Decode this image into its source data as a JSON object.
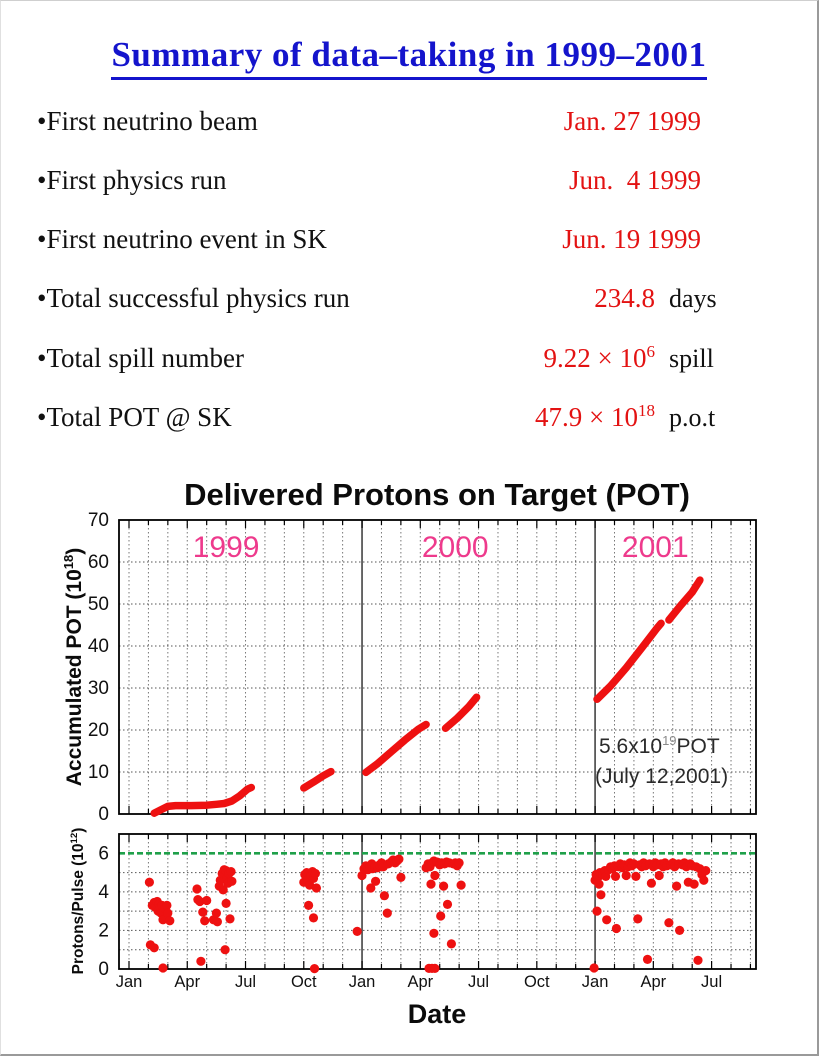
{
  "title": "Summary of data–taking in 1999–2001",
  "summary": {
    "items": [
      {
        "label": "•First neutrino beam",
        "value": "Jan. 27 1999",
        "value_sup": "",
        "unit": ""
      },
      {
        "label": "•First physics run",
        "value": "Jun.  4 1999",
        "value_sup": "",
        "unit": ""
      },
      {
        "label": "•First neutrino event in SK",
        "value": "Jun. 19 1999",
        "value_sup": "",
        "unit": ""
      },
      {
        "label": "•Total successful physics run",
        "value": "234.8",
        "value_sup": "",
        "unit": "days"
      },
      {
        "label": "•Total spill number",
        "value": "9.22 × 10",
        "value_sup": "6",
        "unit": "spill"
      },
      {
        "label": "•Total POT @ SK",
        "value": "47.9 × 10",
        "value_sup": "18",
        "unit": "p.o.t"
      }
    ]
  },
  "chart_data": {
    "type": "line+scatter",
    "title": "Delivered Protons on Target (POT)",
    "xlabel": "Date",
    "x_axis_unit": "months since Jan 1999",
    "x_tick_months": [
      0,
      3,
      6,
      9,
      12,
      15,
      18,
      21,
      24,
      27,
      30
    ],
    "x_tick_labels": [
      "Jan",
      "Apr",
      "Jul",
      "Oct",
      "Jan",
      "Apr",
      "Jul",
      "Oct",
      "Jan",
      "Apr",
      "Jul"
    ],
    "x_range_months": [
      -0.5,
      32.3
    ],
    "year_labels": [
      {
        "text": "1999",
        "month": 5.0
      },
      {
        "text": "2000",
        "month": 16.8
      },
      {
        "text": "2001",
        "month": 27.1
      }
    ],
    "grid": "monthly dashed vertical, yearly solid vertical, dashed horizontal",
    "annotation": {
      "line1_base": "5.6x10",
      "line1_sup": "19",
      "line1_end": "POT",
      "line2": "(July 12,2001)",
      "month": 26.5,
      "value": 16
    },
    "colors": {
      "series": "#ee1111",
      "year_label": "#ee3a8c",
      "reference_line": "#1fa04a",
      "title_blue": "#1414cc",
      "grid": "#777777"
    },
    "panels": [
      {
        "name": "accumulated-pot",
        "ylabel_base": "Accumulated POT (10",
        "ylabel_sup": "18",
        "ylabel_close": ")",
        "ylim": [
          0,
          70
        ],
        "yticks": [
          0,
          10,
          20,
          30,
          40,
          50,
          60,
          70
        ],
        "series_segments": [
          [
            [
              1.3,
              0.2
            ],
            [
              1.6,
              0.9
            ],
            [
              2.0,
              1.8
            ],
            [
              2.4,
              2.0
            ],
            [
              3.2,
              2.0
            ],
            [
              4.0,
              2.1
            ],
            [
              4.5,
              2.3
            ],
            [
              4.9,
              2.5
            ],
            [
              5.3,
              3.1
            ],
            [
              5.7,
              4.3
            ],
            [
              6.1,
              5.9
            ],
            [
              6.3,
              6.3
            ]
          ],
          [
            [
              9.0,
              6.2
            ],
            [
              9.5,
              7.6
            ],
            [
              10.0,
              9.1
            ],
            [
              10.4,
              10.1
            ]
          ],
          [
            [
              12.2,
              9.9
            ],
            [
              12.8,
              12.0
            ],
            [
              13.5,
              14.8
            ],
            [
              14.2,
              17.6
            ],
            [
              14.9,
              20.2
            ],
            [
              15.3,
              21.3
            ]
          ],
          [
            [
              16.3,
              20.4
            ],
            [
              16.9,
              22.8
            ],
            [
              17.5,
              25.6
            ],
            [
              17.9,
              27.8
            ]
          ],
          [
            [
              24.1,
              27.3
            ],
            [
              24.8,
              30.5
            ],
            [
              25.6,
              34.8
            ],
            [
              26.4,
              39.5
            ],
            [
              27.2,
              44.3
            ],
            [
              27.4,
              45.4
            ]
          ],
          [
            [
              27.8,
              46.2
            ],
            [
              28.4,
              49.6
            ],
            [
              29.0,
              52.8
            ],
            [
              29.4,
              55.7
            ]
          ]
        ]
      },
      {
        "name": "protons-per-pulse",
        "ylabel_base": "Protons/Pulse (10",
        "ylabel_sup": "12",
        "ylabel_close": ")",
        "ylim": [
          0,
          7
        ],
        "yticks": [
          0,
          2,
          4,
          6
        ],
        "reference_line": 6,
        "scatter": [
          [
            1.05,
            4.5
          ],
          [
            1.1,
            1.25
          ],
          [
            1.3,
            1.1
          ],
          [
            1.2,
            3.3
          ],
          [
            1.3,
            3.45
          ],
          [
            1.35,
            3.2
          ],
          [
            1.45,
            3.5
          ],
          [
            1.5,
            3.0
          ],
          [
            1.55,
            3.35
          ],
          [
            1.6,
            3.2
          ],
          [
            1.65,
            2.9
          ],
          [
            1.7,
            3.3
          ],
          [
            1.75,
            2.55
          ],
          [
            1.85,
            3.15
          ],
          [
            1.95,
            3.3
          ],
          [
            2.0,
            2.9
          ],
          [
            1.75,
            0.05
          ],
          [
            2.1,
            2.5
          ],
          [
            3.5,
            4.15
          ],
          [
            3.55,
            3.6
          ],
          [
            3.65,
            3.5
          ],
          [
            3.8,
            2.95
          ],
          [
            3.9,
            2.5
          ],
          [
            4.0,
            3.55
          ],
          [
            3.7,
            0.4
          ],
          [
            4.35,
            2.55
          ],
          [
            4.5,
            2.9
          ],
          [
            4.55,
            2.45
          ],
          [
            4.65,
            4.3
          ],
          [
            4.7,
            4.6
          ],
          [
            4.8,
            4.95
          ],
          [
            4.85,
            4.1
          ],
          [
            4.9,
            5.15
          ],
          [
            5.0,
            5.1
          ],
          [
            5.05,
            4.7
          ],
          [
            5.1,
            4.45
          ],
          [
            5.15,
            4.95
          ],
          [
            5.25,
            5.05
          ],
          [
            5.3,
            4.55
          ],
          [
            5.0,
            3.4
          ],
          [
            5.2,
            2.6
          ],
          [
            4.95,
            1.0
          ],
          [
            9.0,
            4.5
          ],
          [
            9.05,
            4.9
          ],
          [
            9.15,
            5.0
          ],
          [
            9.2,
            4.6
          ],
          [
            9.3,
            4.35
          ],
          [
            9.35,
            4.85
          ],
          [
            9.45,
            5.05
          ],
          [
            9.5,
            4.7
          ],
          [
            9.6,
            4.95
          ],
          [
            9.65,
            4.2
          ],
          [
            9.25,
            3.3
          ],
          [
            9.5,
            2.65
          ],
          [
            9.55,
            0.02
          ],
          [
            11.75,
            1.95
          ],
          [
            12.0,
            4.85
          ],
          [
            12.1,
            5.2
          ],
          [
            12.2,
            5.35
          ],
          [
            12.3,
            5.15
          ],
          [
            12.4,
            5.3
          ],
          [
            12.45,
            4.2
          ],
          [
            12.5,
            5.45
          ],
          [
            12.55,
            5.2
          ],
          [
            12.65,
            5.3
          ],
          [
            12.7,
            4.55
          ],
          [
            12.8,
            5.25
          ],
          [
            12.9,
            5.4
          ],
          [
            13.0,
            5.5
          ],
          [
            13.1,
            5.3
          ],
          [
            13.15,
            3.8
          ],
          [
            13.3,
            2.9
          ],
          [
            13.35,
            5.45
          ],
          [
            13.5,
            5.55
          ],
          [
            13.6,
            5.65
          ],
          [
            13.7,
            5.5
          ],
          [
            13.8,
            5.6
          ],
          [
            13.9,
            5.7
          ],
          [
            14.0,
            4.75
          ],
          [
            15.3,
            5.25
          ],
          [
            15.4,
            5.45
          ],
          [
            15.45,
            0.03
          ],
          [
            15.5,
            5.3
          ],
          [
            15.55,
            4.4
          ],
          [
            15.6,
            5.5
          ],
          [
            15.6,
            0.03
          ],
          [
            15.7,
            5.6
          ],
          [
            15.7,
            1.85
          ],
          [
            15.75,
            4.85
          ],
          [
            15.75,
            0.03
          ],
          [
            15.85,
            5.55
          ],
          [
            16.0,
            5.4
          ],
          [
            16.05,
            2.75
          ],
          [
            16.1,
            5.5
          ],
          [
            16.2,
            4.3
          ],
          [
            16.25,
            5.45
          ],
          [
            16.35,
            5.55
          ],
          [
            16.4,
            3.35
          ],
          [
            16.5,
            5.5
          ],
          [
            16.6,
            1.3
          ],
          [
            16.7,
            5.45
          ],
          [
            16.8,
            5.5
          ],
          [
            16.9,
            5.35
          ],
          [
            17.0,
            5.5
          ],
          [
            17.1,
            4.35
          ],
          [
            23.95,
            0.05
          ],
          [
            24.0,
            4.6
          ],
          [
            24.05,
            4.9
          ],
          [
            24.1,
            3.0
          ],
          [
            24.15,
            4.75
          ],
          [
            24.2,
            4.4
          ],
          [
            24.25,
            5.0
          ],
          [
            24.3,
            3.85
          ],
          [
            24.4,
            4.9
          ],
          [
            24.5,
            5.1
          ],
          [
            24.55,
            4.8
          ],
          [
            24.6,
            2.55
          ],
          [
            24.7,
            5.15
          ],
          [
            24.8,
            5.3
          ],
          [
            24.9,
            5.2
          ],
          [
            25.0,
            5.35
          ],
          [
            25.05,
            4.8
          ],
          [
            25.1,
            2.1
          ],
          [
            25.2,
            5.3
          ],
          [
            25.3,
            5.45
          ],
          [
            25.4,
            5.25
          ],
          [
            25.5,
            5.4
          ],
          [
            25.6,
            4.85
          ],
          [
            25.7,
            5.3
          ],
          [
            25.8,
            5.5
          ],
          [
            25.9,
            5.35
          ],
          [
            26.0,
            5.45
          ],
          [
            26.1,
            4.8
          ],
          [
            26.2,
            2.6
          ],
          [
            26.3,
            5.4
          ],
          [
            26.4,
            5.3
          ],
          [
            26.5,
            5.5
          ],
          [
            26.6,
            5.35
          ],
          [
            26.7,
            0.5
          ],
          [
            26.8,
            5.45
          ],
          [
            26.9,
            4.45
          ],
          [
            27.0,
            5.3
          ],
          [
            27.1,
            5.5
          ],
          [
            27.2,
            5.4
          ],
          [
            27.3,
            4.85
          ],
          [
            27.4,
            5.45
          ],
          [
            27.5,
            5.3
          ],
          [
            27.6,
            5.5
          ],
          [
            27.7,
            5.35
          ],
          [
            27.8,
            2.4
          ],
          [
            27.9,
            5.4
          ],
          [
            28.0,
            5.5
          ],
          [
            28.1,
            5.3
          ],
          [
            28.2,
            4.3
          ],
          [
            28.3,
            5.45
          ],
          [
            28.35,
            2.0
          ],
          [
            28.5,
            5.4
          ],
          [
            28.6,
            5.5
          ],
          [
            28.7,
            5.3
          ],
          [
            28.8,
            4.5
          ],
          [
            28.9,
            5.45
          ],
          [
            29.0,
            5.35
          ],
          [
            29.1,
            4.4
          ],
          [
            29.2,
            5.3
          ],
          [
            29.3,
            0.45
          ],
          [
            29.4,
            5.2
          ],
          [
            29.5,
            4.9
          ],
          [
            29.6,
            4.6
          ],
          [
            29.7,
            5.1
          ]
        ]
      }
    ]
  }
}
